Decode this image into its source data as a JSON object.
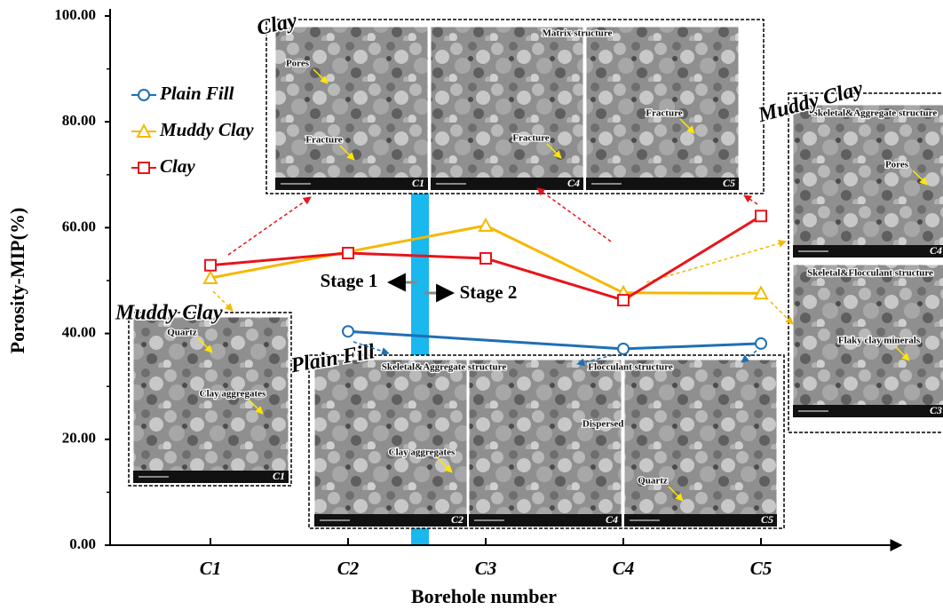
{
  "chart_data": {
    "type": "line",
    "y_label": "Porosity-MIP(%)",
    "x_label": "Borehole number",
    "categories": [
      "C1",
      "C2",
      "C3",
      "C4",
      "C5"
    ],
    "ylim": [
      0,
      100
    ],
    "yticks": [
      {
        "value": 0,
        "label": "0.00"
      },
      {
        "value": 20,
        "label": "20.00"
      },
      {
        "value": 40,
        "label": "40.00"
      },
      {
        "value": 60,
        "label": "60.00"
      },
      {
        "value": 80,
        "label": "80.00"
      },
      {
        "value": 100,
        "label": "100.00"
      }
    ],
    "series": [
      {
        "name": "Plain Fill",
        "color": "#1f6fb5",
        "marker": "circle",
        "x": [
          "C2",
          "C4",
          "C5"
        ],
        "values": [
          40.4,
          37.1,
          38.1
        ]
      },
      {
        "name": "Muddy Clay",
        "color": "#f5b800",
        "marker": "triangle",
        "x": [
          "C1",
          "C3",
          "C4",
          "C5"
        ],
        "values": [
          50.5,
          60.4,
          47.7,
          47.6
        ]
      },
      {
        "name": "Clay",
        "color": "#e8141b",
        "marker": "square",
        "x": [
          "C1",
          "C2",
          "C3",
          "C4",
          "C5"
        ],
        "values": [
          52.9,
          55.2,
          54.2,
          46.3,
          62.2
        ]
      }
    ],
    "stages": [
      "Stage 1",
      "Stage 2"
    ],
    "insets": [
      {
        "title": "Clay",
        "headers": [
          "Matrix structure"
        ],
        "panels": [
          {
            "label": "C1",
            "notes": [
              "Pores",
              "Fracture"
            ]
          },
          {
            "label": "C4",
            "notes": [
              "Fracture"
            ]
          },
          {
            "label": "C5",
            "notes": [
              "Fracture"
            ]
          }
        ]
      },
      {
        "title": "Muddy Clay",
        "headers": [
          "Skeletal&Aggregate structure",
          "Skeletal&Flocculant structure"
        ],
        "panels": [
          {
            "label": "C4",
            "notes": [
              "Pores"
            ]
          },
          {
            "label": "C3",
            "notes": [
              "Flaky clay minerals"
            ]
          }
        ]
      },
      {
        "title": "Muddy Clay",
        "headers": [],
        "panels": [
          {
            "label": "C1",
            "notes": [
              "Quartz",
              "Clay aggregates"
            ]
          }
        ]
      },
      {
        "title": "Plain Fill",
        "headers": [
          "Skeletal&Aggregate structure",
          "Flocculant structure"
        ],
        "panels": [
          {
            "label": "C2",
            "notes": [
              "Clay aggregates"
            ]
          },
          {
            "label": "C4",
            "notes": [
              "Dispersed clay"
            ]
          },
          {
            "label": "C5",
            "notes": [
              "Quartz"
            ]
          }
        ]
      }
    ]
  }
}
